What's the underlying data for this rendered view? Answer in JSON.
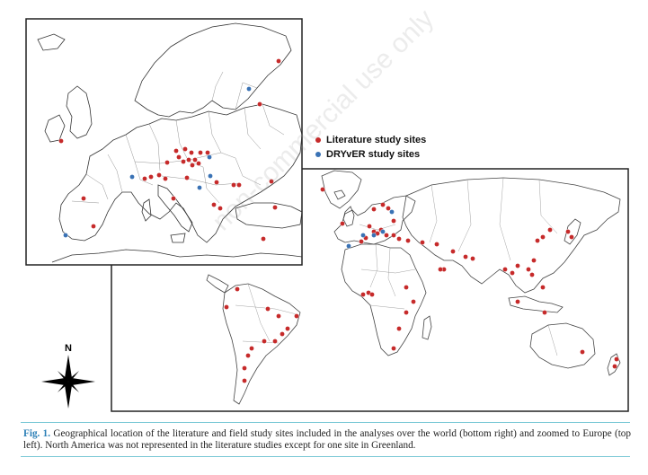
{
  "legend": {
    "literature_label": "Literature study sites",
    "dryver_label": "DRYvER study sites",
    "literature_color": "#c62a2a",
    "dryver_color": "#3a72b5"
  },
  "compass": {
    "north_label": "N"
  },
  "watermark": {
    "text": "non-commercial use only"
  },
  "caption": {
    "figure_label": "Fig. 1.",
    "text": "Geographical location of the literature and field study sites included in the analyses over the world (bottom right) and zoomed to Europe (top left). North America was not represented in the literature studies except for one site in Greenland."
  },
  "colors": {
    "map_outline": "#222222",
    "country_border": "#777777",
    "caption_rule": "#7ac8d6",
    "figure_label": "#2a7fb6"
  }
}
